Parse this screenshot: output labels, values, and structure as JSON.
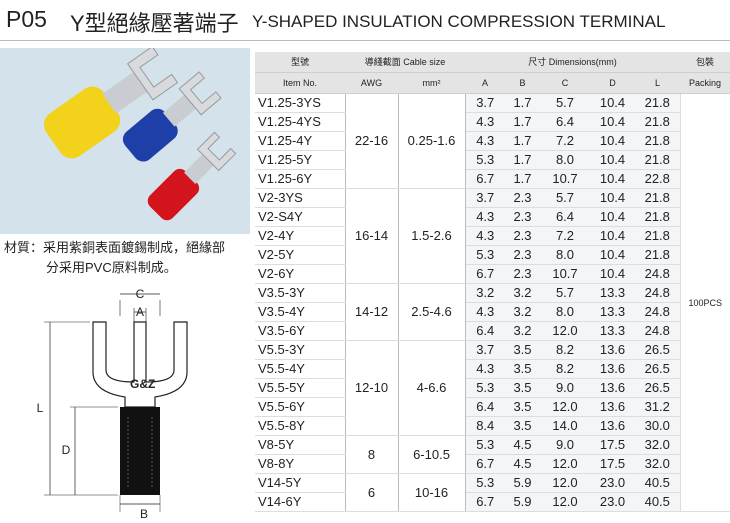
{
  "header": {
    "code": "P05",
    "title_cn": "Y型絕緣壓著端子",
    "title_en": "Y-SHAPED INSULATION COMPRESSION TERMINAL"
  },
  "material_note": [
    "材質：采用紫銅表面鍍錫制成，絕緣部",
    "分采用PVC原料制成。"
  ],
  "drawing": {
    "logo": "G&Z",
    "labels": [
      "C",
      "A",
      "L",
      "D",
      "B"
    ]
  },
  "table": {
    "header_row1": [
      "型號",
      "導綫截面 Cable size",
      "尺寸 Dimensions(mm)",
      "包裝"
    ],
    "header_row2": [
      "Item No.",
      "AWG",
      "mm²",
      "A",
      "B",
      "C",
      "D",
      "L",
      "Packing"
    ],
    "packing": "100PCS",
    "groups": [
      {
        "awg": "22-16",
        "mm2": "0.25-1.6",
        "rows": [
          {
            "item": "V1.25-3YS",
            "dims": [
              "3.7",
              "1.7",
              "5.7",
              "10.4",
              "21.8"
            ]
          },
          {
            "item": "V1.25-4YS",
            "dims": [
              "4.3",
              "1.7",
              "6.4",
              "10.4",
              "21.8"
            ]
          },
          {
            "item": "V1.25-4Y",
            "dims": [
              "4.3",
              "1.7",
              "7.2",
              "10.4",
              "21.8"
            ]
          },
          {
            "item": "V1.25-5Y",
            "dims": [
              "5.3",
              "1.7",
              "8.0",
              "10.4",
              "21.8"
            ]
          },
          {
            "item": "V1.25-6Y",
            "dims": [
              "6.7",
              "1.7",
              "10.7",
              "10.4",
              "22.8"
            ]
          }
        ]
      },
      {
        "awg": "16-14",
        "mm2": "1.5-2.6",
        "rows": [
          {
            "item": "V2-3YS",
            "dims": [
              "3.7",
              "2.3",
              "5.7",
              "10.4",
              "21.8"
            ]
          },
          {
            "item": "V2-S4Y",
            "dims": [
              "4.3",
              "2.3",
              "6.4",
              "10.4",
              "21.8"
            ]
          },
          {
            "item": "V2-4Y",
            "dims": [
              "4.3",
              "2.3",
              "7.2",
              "10.4",
              "21.8"
            ]
          },
          {
            "item": "V2-5Y",
            "dims": [
              "5.3",
              "2.3",
              "8.0",
              "10.4",
              "21.8"
            ]
          },
          {
            "item": "V2-6Y",
            "dims": [
              "6.7",
              "2.3",
              "10.7",
              "10.4",
              "24.8"
            ]
          }
        ]
      },
      {
        "awg": "14-12",
        "mm2": "2.5-4.6",
        "rows": [
          {
            "item": "V3.5-3Y",
            "dims": [
              "3.2",
              "3.2",
              "5.7",
              "13.3",
              "24.8"
            ]
          },
          {
            "item": "V3.5-4Y",
            "dims": [
              "4.3",
              "3.2",
              "8.0",
              "13.3",
              "24.8"
            ]
          },
          {
            "item": "V3.5-6Y",
            "dims": [
              "6.4",
              "3.2",
              "12.0",
              "13.3",
              "24.8"
            ]
          }
        ]
      },
      {
        "awg": "12-10",
        "mm2": "4-6.6",
        "rows": [
          {
            "item": "V5.5-3Y",
            "dims": [
              "3.7",
              "3.5",
              "8.2",
              "13.6",
              "26.5"
            ]
          },
          {
            "item": "V5.5-4Y",
            "dims": [
              "4.3",
              "3.5",
              "8.2",
              "13.6",
              "26.5"
            ]
          },
          {
            "item": "V5.5-5Y",
            "dims": [
              "5.3",
              "3.5",
              "9.0",
              "13.6",
              "26.5"
            ]
          },
          {
            "item": "V5.5-6Y",
            "dims": [
              "6.4",
              "3.5",
              "12.0",
              "13.6",
              "31.2"
            ]
          },
          {
            "item": "V5.5-8Y",
            "dims": [
              "8.4",
              "3.5",
              "14.0",
              "13.6",
              "30.0"
            ]
          }
        ]
      },
      {
        "awg": "8",
        "mm2": "6-10.5",
        "rows": [
          {
            "item": "V8-5Y",
            "dims": [
              "5.3",
              "4.5",
              "9.0",
              "17.5",
              "32.0"
            ]
          },
          {
            "item": "V8-8Y",
            "dims": [
              "6.7",
              "4.5",
              "12.0",
              "17.5",
              "32.0"
            ]
          }
        ]
      },
      {
        "awg": "6",
        "mm2": "10-16",
        "rows": [
          {
            "item": "V14-5Y",
            "dims": [
              "5.3",
              "5.9",
              "12.0",
              "23.0",
              "40.5"
            ]
          },
          {
            "item": "V14-6Y",
            "dims": [
              "6.7",
              "5.9",
              "12.0",
              "23.0",
              "40.5"
            ]
          }
        ]
      }
    ]
  }
}
